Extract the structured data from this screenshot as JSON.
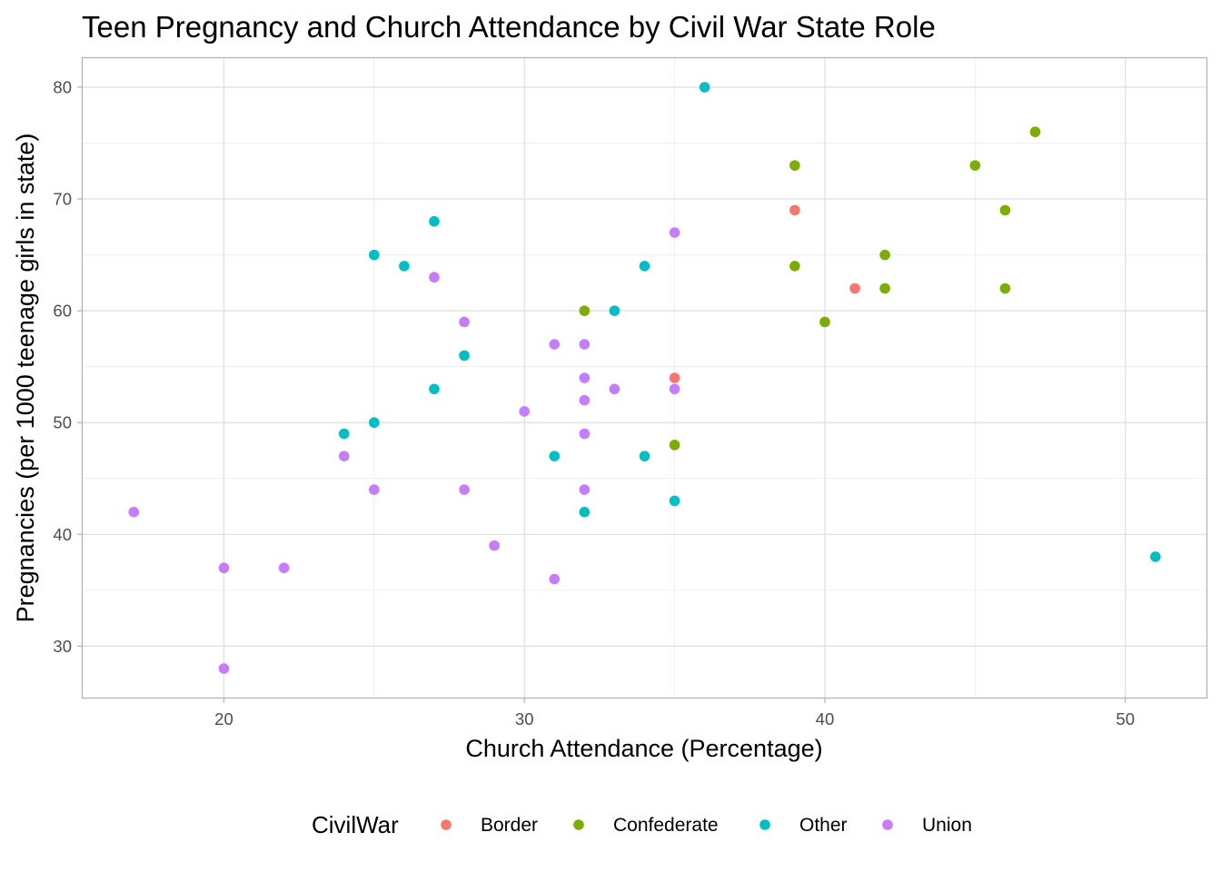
{
  "chart_data": {
    "type": "scatter",
    "title": "Teen Pregnancy and Church Attendance by Civil War State Role",
    "xlabel": "Church Attendance (Percentage)",
    "ylabel": "Pregnancies (per 1000 teenage girls in state)",
    "xlim": [
      15.3,
      52.7
    ],
    "ylim": [
      25.4,
      82.6
    ],
    "x_ticks": [
      20,
      30,
      40,
      50
    ],
    "y_ticks": [
      30,
      40,
      50,
      60,
      70,
      80
    ],
    "x_tick_labels": [
      "20",
      "30",
      "40",
      "50"
    ],
    "y_tick_labels": [
      "30",
      "40",
      "50",
      "60",
      "70",
      "80"
    ],
    "grid": true,
    "legend": {
      "title": "CivilWar",
      "placement": "bottom"
    },
    "series": [
      {
        "name": "Border",
        "color": "#F8766D",
        "points": [
          [
            39,
            69
          ],
          [
            41,
            62
          ],
          [
            35,
            54
          ]
        ]
      },
      {
        "name": "Confederate",
        "color": "#7CAE00",
        "points": [
          [
            47,
            76
          ],
          [
            39,
            73
          ],
          [
            45,
            73
          ],
          [
            46,
            69
          ],
          [
            42,
            65
          ],
          [
            39,
            64
          ],
          [
            42,
            62
          ],
          [
            46,
            62
          ],
          [
            32,
            60
          ],
          [
            40,
            59
          ],
          [
            35,
            48
          ]
        ]
      },
      {
        "name": "Other",
        "color": "#00BFC4",
        "points": [
          [
            36,
            80
          ],
          [
            27,
            68
          ],
          [
            25,
            65
          ],
          [
            26,
            64
          ],
          [
            34,
            64
          ],
          [
            33,
            60
          ],
          [
            28,
            56
          ],
          [
            27,
            53
          ],
          [
            25,
            50
          ],
          [
            24,
            49
          ],
          [
            31,
            47
          ],
          [
            34,
            47
          ],
          [
            35,
            43
          ],
          [
            32,
            42
          ],
          [
            51,
            38
          ]
        ]
      },
      {
        "name": "Union",
        "color": "#C77CFF",
        "points": [
          [
            35,
            67
          ],
          [
            27,
            63
          ],
          [
            28,
            59
          ],
          [
            31,
            57
          ],
          [
            32,
            57
          ],
          [
            32,
            54
          ],
          [
            33,
            53
          ],
          [
            35,
            53
          ],
          [
            32,
            52
          ],
          [
            30,
            51
          ],
          [
            32,
            49
          ],
          [
            24,
            47
          ],
          [
            25,
            44
          ],
          [
            28,
            44
          ],
          [
            32,
            44
          ],
          [
            17,
            42
          ],
          [
            29,
            39
          ],
          [
            20,
            37
          ],
          [
            22,
            37
          ],
          [
            31,
            36
          ],
          [
            20,
            28
          ]
        ]
      }
    ]
  }
}
